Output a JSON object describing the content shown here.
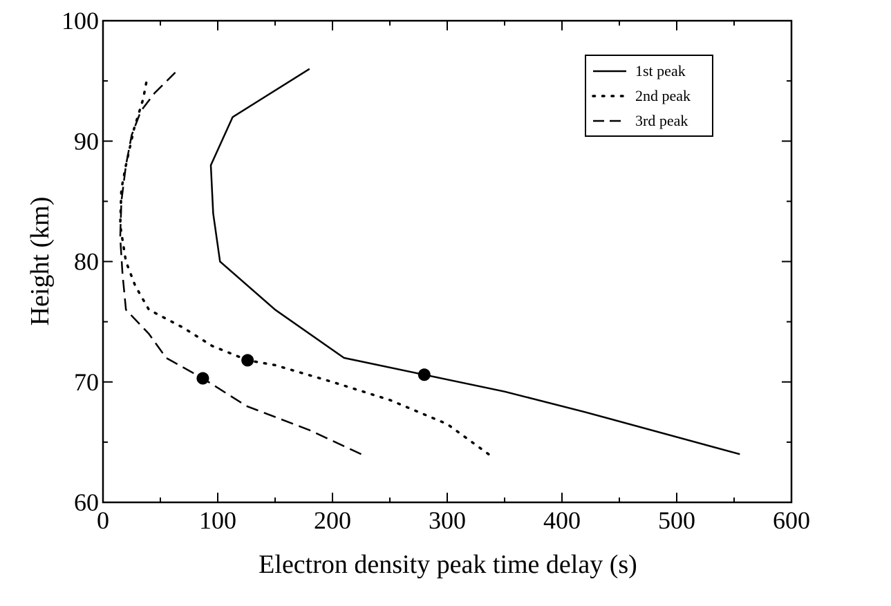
{
  "chart_data": {
    "type": "line",
    "title": "",
    "xlabel": "Electron density peak time delay (s)",
    "ylabel": "Height (km)",
    "xlim": [
      0,
      600
    ],
    "ylim": [
      60,
      100
    ],
    "xticks": [
      0,
      100,
      200,
      300,
      400,
      500,
      600
    ],
    "yticks": [
      60,
      70,
      80,
      90,
      100
    ],
    "grid": false,
    "legend_position": "top-right",
    "series": [
      {
        "name": "1st peak",
        "style": "solid",
        "points": [
          [
            555,
            64
          ],
          [
            420,
            67.5
          ],
          [
            350,
            69.2
          ],
          [
            280,
            70.6
          ],
          [
            210,
            72
          ],
          [
            150,
            76
          ],
          [
            102,
            80
          ],
          [
            96,
            84
          ],
          [
            94,
            88
          ],
          [
            113,
            92
          ],
          [
            180,
            96
          ]
        ],
        "marker": [
          280,
          70.6
        ]
      },
      {
        "name": "2nd peak",
        "style": "dotted",
        "points": [
          [
            336,
            64
          ],
          [
            300,
            66.5
          ],
          [
            250,
            68.5
          ],
          [
            200,
            70
          ],
          [
            150,
            71.4
          ],
          [
            126,
            71.8
          ],
          [
            95,
            73
          ],
          [
            70,
            74.5
          ],
          [
            40,
            76
          ],
          [
            28,
            78
          ],
          [
            20,
            80
          ],
          [
            15,
            83
          ],
          [
            16,
            86
          ],
          [
            20,
            88
          ],
          [
            27,
            91
          ],
          [
            35,
            93.5
          ],
          [
            38,
            95
          ]
        ],
        "marker": [
          126,
          71.8
        ]
      },
      {
        "name": "3rd peak",
        "style": "dashed",
        "points": [
          [
            225,
            64
          ],
          [
            180,
            66
          ],
          [
            125,
            68
          ],
          [
            87,
            70.3
          ],
          [
            55,
            72
          ],
          [
            40,
            74
          ],
          [
            20,
            76
          ],
          [
            17,
            79
          ],
          [
            15,
            82
          ],
          [
            16,
            85
          ],
          [
            20,
            88
          ],
          [
            25,
            90.5
          ],
          [
            33,
            92.5
          ],
          [
            45,
            94
          ],
          [
            63,
            95.7
          ]
        ],
        "marker": [
          87,
          70.3
        ]
      }
    ]
  }
}
